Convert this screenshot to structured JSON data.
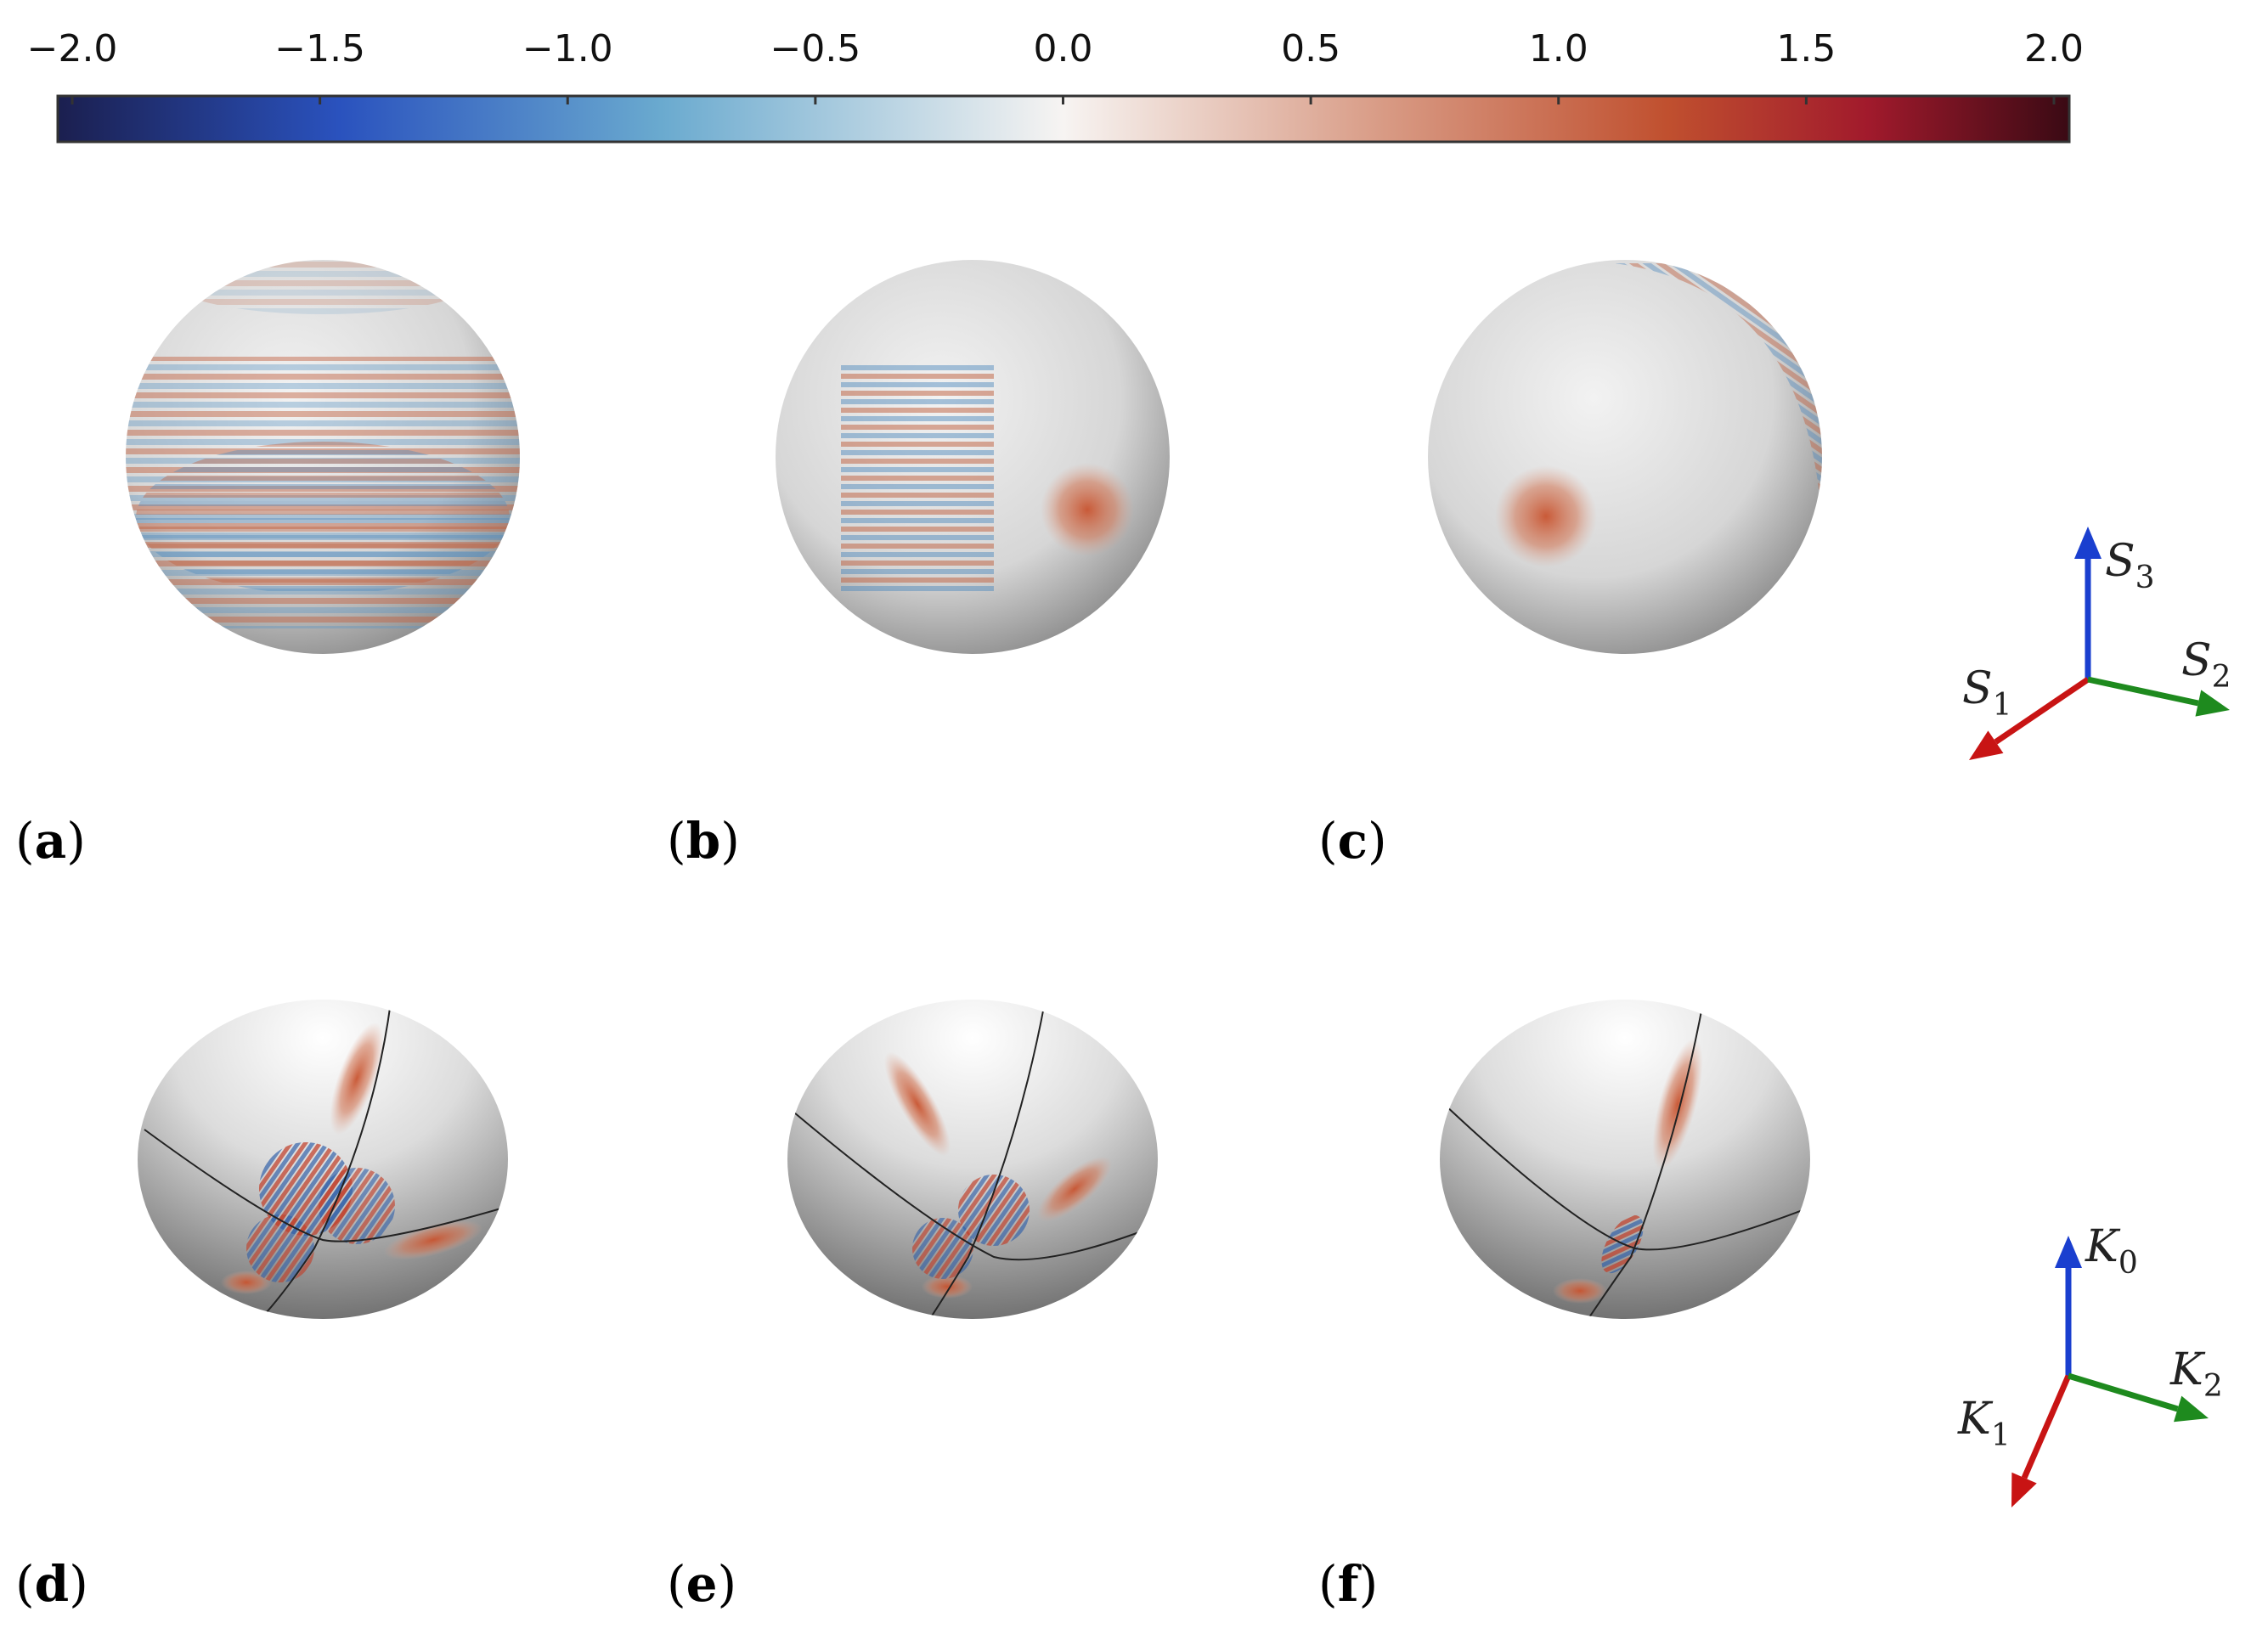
{
  "colorbar": {
    "ticks": [
      "−2.0",
      "−1.5",
      "−1.0",
      "−0.5",
      "0.0",
      "0.5",
      "1.0",
      "1.5",
      "2.0"
    ],
    "range": [
      -2.0,
      2.0
    ],
    "colors": [
      "#1b1f4f",
      "#2a52be",
      "#6aaacf",
      "#f7f4f2",
      "#d89a84",
      "#c0502f",
      "#a11a2c",
      "#3a0a14"
    ]
  },
  "panels": [
    {
      "id": "a",
      "label": "a"
    },
    {
      "id": "b",
      "label": "b"
    },
    {
      "id": "c",
      "label": "c"
    },
    {
      "id": "d",
      "label": "d"
    },
    {
      "id": "e",
      "label": "e"
    },
    {
      "id": "f",
      "label": "f"
    }
  ],
  "axes_top": {
    "up": {
      "base": "S",
      "sub": "3",
      "color": "#1a3fcf"
    },
    "left": {
      "base": "S",
      "sub": "1",
      "color": "#c81414"
    },
    "right": {
      "base": "S",
      "sub": "2",
      "color": "#1e8a1e"
    }
  },
  "axes_bottom": {
    "up": {
      "base": "K",
      "sub": "0",
      "color": "#1a3fcf"
    },
    "left": {
      "base": "K",
      "sub": "1",
      "color": "#c81414"
    },
    "right": {
      "base": "K",
      "sub": "2",
      "color": "#1e8a1e"
    }
  }
}
